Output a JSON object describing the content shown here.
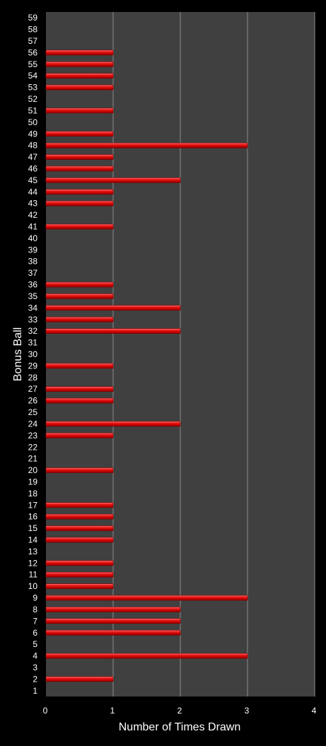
{
  "chart_data": {
    "type": "bar",
    "orientation": "horizontal",
    "title": "",
    "xlabel": "Number of Times Drawn",
    "ylabel": "Bonus Ball",
    "xlim": [
      0,
      4
    ],
    "xticks": [
      0,
      1,
      2,
      3,
      4
    ],
    "grid": true,
    "legend": "none",
    "categories": [
      "1",
      "2",
      "3",
      "4",
      "5",
      "6",
      "7",
      "8",
      "9",
      "10",
      "11",
      "12",
      "13",
      "14",
      "15",
      "16",
      "17",
      "18",
      "19",
      "20",
      "21",
      "22",
      "23",
      "24",
      "25",
      "26",
      "27",
      "28",
      "29",
      "30",
      "31",
      "32",
      "33",
      "34",
      "35",
      "36",
      "37",
      "38",
      "39",
      "40",
      "41",
      "42",
      "43",
      "44",
      "45",
      "46",
      "47",
      "48",
      "49",
      "50",
      "51",
      "52",
      "53",
      "54",
      "55",
      "56",
      "57",
      "58",
      "59"
    ],
    "values": [
      0,
      1,
      0,
      3,
      0,
      2,
      2,
      2,
      3,
      1,
      1,
      1,
      0,
      1,
      1,
      1,
      1,
      0,
      0,
      1,
      0,
      0,
      1,
      2,
      0,
      1,
      1,
      0,
      1,
      0,
      0,
      2,
      1,
      2,
      1,
      1,
      0,
      0,
      0,
      0,
      1,
      0,
      1,
      1,
      2,
      1,
      1,
      3,
      1,
      0,
      1,
      0,
      1,
      1,
      1,
      1,
      0,
      0,
      0
    ],
    "colors": {
      "background": "#000000",
      "plot_area": "#404040",
      "bar": "#dd1111",
      "bar_highlight": "#ff7070",
      "bar_shadow": "#8a0000",
      "gridline": "#8c8c8c",
      "text": "#ffffff"
    }
  }
}
